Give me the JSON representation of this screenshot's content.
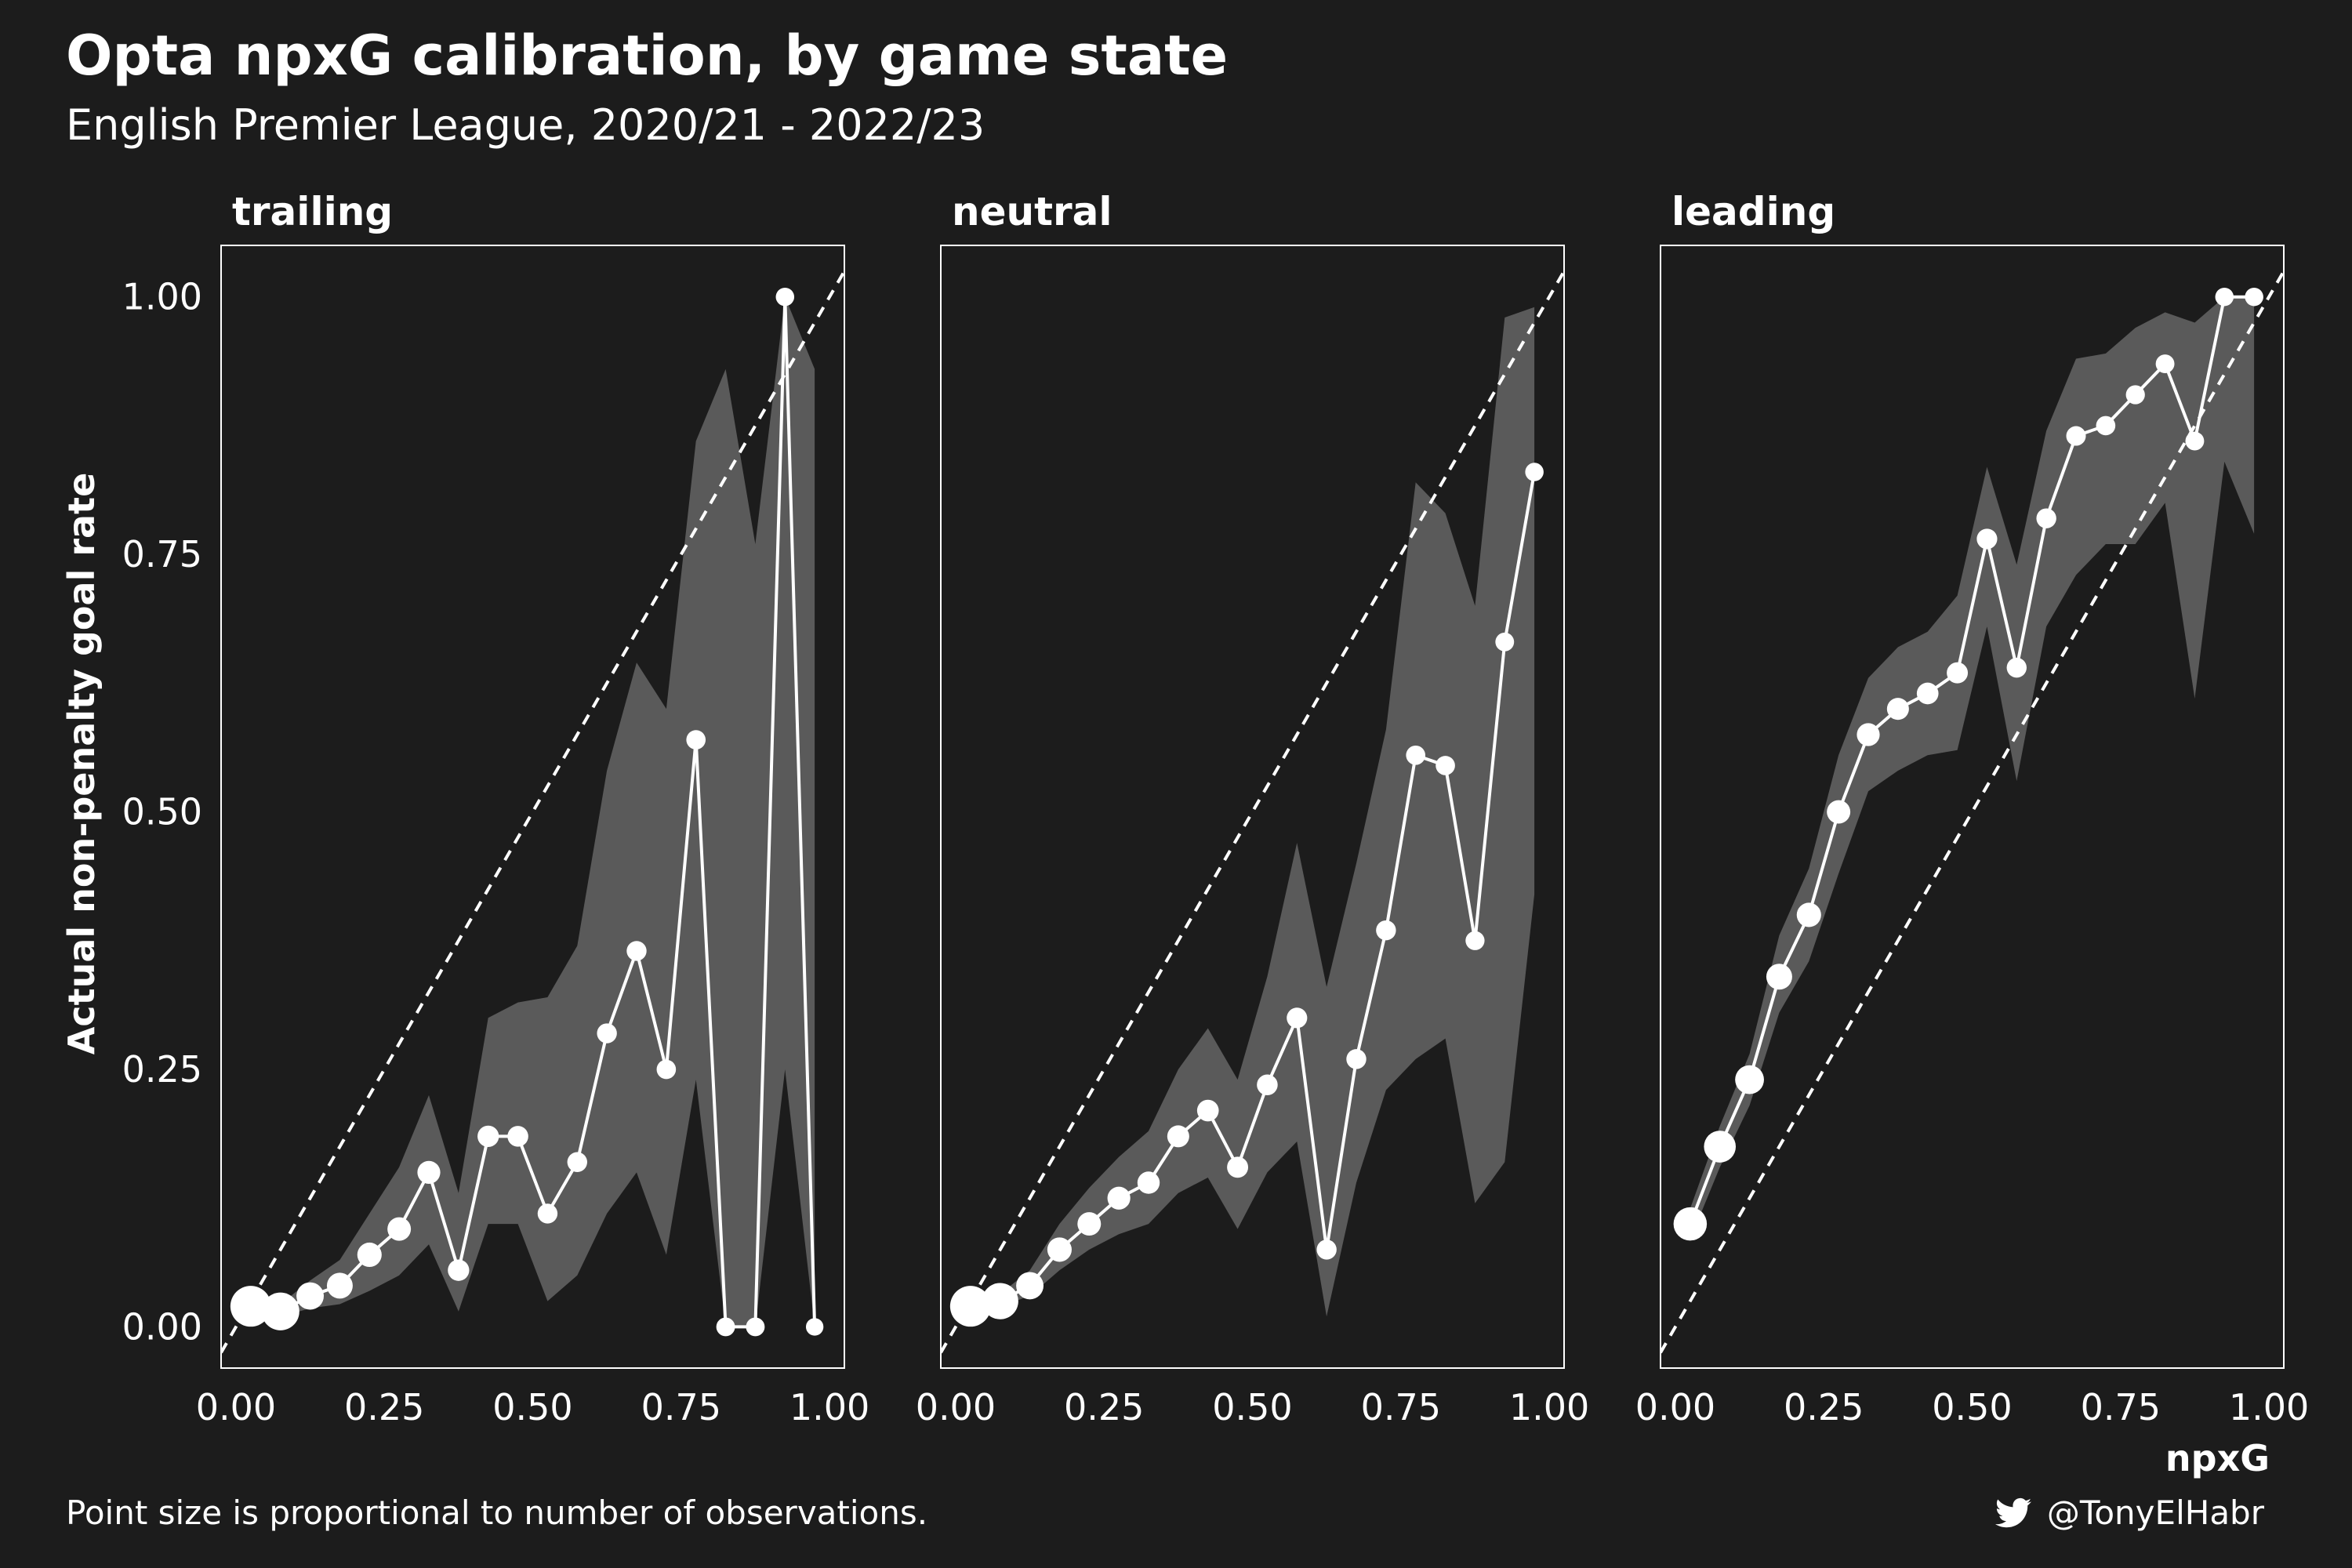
{
  "title": "Opta npxG calibration, by game state",
  "subtitle": "English Premier League, 2020/21 - 2022/23",
  "caption": "Point size is proportional to number of observations.",
  "credit": "@TonyElHabr",
  "icons": {
    "credit": "twitter-bird-icon"
  },
  "colors": {
    "background": "#1c1c1c",
    "band": "#5a5a5a",
    "line": "#ffffff"
  },
  "chart_data": {
    "type": "line",
    "xlabel": "npxG",
    "ylabel": "Actual non-penalty goal rate",
    "xlim": [
      0,
      1
    ],
    "ylim": [
      -0.04,
      1.05
    ],
    "xticks": [
      "0.00",
      "0.25",
      "0.50",
      "0.75",
      "1.00"
    ],
    "yticks": [
      "0.00",
      "0.25",
      "0.50",
      "0.75",
      "1.00"
    ],
    "reference_line": "y = x (dashed)",
    "grid": false,
    "panels": [
      {
        "name": "trailing",
        "x": [
          0.025,
          0.075,
          0.125,
          0.175,
          0.225,
          0.275,
          0.325,
          0.375,
          0.425,
          0.475,
          0.525,
          0.575,
          0.625,
          0.675,
          0.725,
          0.775,
          0.825,
          0.875,
          0.925,
          0.975
        ],
        "y": [
          0.02,
          0.015,
          0.03,
          0.04,
          0.07,
          0.095,
          0.15,
          0.055,
          0.185,
          0.185,
          0.11,
          0.16,
          0.285,
          0.365,
          0.25,
          0.57,
          0.0,
          0.0,
          1.0,
          0.0
        ],
        "lower": [
          0.01,
          0.01,
          0.018,
          0.022,
          0.035,
          0.05,
          0.08,
          0.015,
          0.1,
          0.1,
          0.025,
          0.05,
          0.11,
          0.15,
          0.07,
          0.24,
          0.0,
          0.0,
          0.25,
          0.0
        ],
        "upper": [
          0.03,
          0.022,
          0.045,
          0.065,
          0.11,
          0.155,
          0.225,
          0.13,
          0.3,
          0.315,
          0.32,
          0.37,
          0.54,
          0.645,
          0.6,
          0.86,
          0.93,
          0.76,
          1.0,
          0.93
        ],
        "size": [
          1.0,
          0.9,
          0.55,
          0.5,
          0.45,
          0.42,
          0.4,
          0.35,
          0.35,
          0.33,
          0.3,
          0.3,
          0.3,
          0.3,
          0.28,
          0.28,
          0.26,
          0.26,
          0.25,
          0.22
        ]
      },
      {
        "name": "neutral",
        "x": [
          0.025,
          0.075,
          0.125,
          0.175,
          0.225,
          0.275,
          0.325,
          0.375,
          0.425,
          0.475,
          0.525,
          0.575,
          0.625,
          0.675,
          0.725,
          0.775,
          0.825,
          0.875,
          0.925,
          0.975
        ],
        "y": [
          0.02,
          0.025,
          0.04,
          0.075,
          0.1,
          0.125,
          0.14,
          0.185,
          0.21,
          0.155,
          0.235,
          0.3,
          0.075,
          0.26,
          0.385,
          0.555,
          0.545,
          0.375,
          0.665,
          0.83
        ],
        "lower": [
          0.015,
          0.02,
          0.03,
          0.055,
          0.075,
          0.09,
          0.1,
          0.13,
          0.145,
          0.095,
          0.15,
          0.18,
          0.01,
          0.14,
          0.23,
          0.26,
          0.28,
          0.12,
          0.16,
          0.42
        ],
        "upper": [
          0.025,
          0.032,
          0.055,
          0.1,
          0.135,
          0.165,
          0.19,
          0.25,
          0.29,
          0.24,
          0.34,
          0.47,
          0.33,
          0.45,
          0.58,
          0.82,
          0.79,
          0.7,
          0.98,
          0.99
        ],
        "size": [
          1.0,
          0.85,
          0.55,
          0.45,
          0.42,
          0.4,
          0.38,
          0.37,
          0.36,
          0.34,
          0.33,
          0.32,
          0.3,
          0.3,
          0.3,
          0.28,
          0.28,
          0.27,
          0.26,
          0.25
        ]
      },
      {
        "name": "leading",
        "x": [
          0.025,
          0.075,
          0.125,
          0.175,
          0.225,
          0.275,
          0.325,
          0.375,
          0.425,
          0.475,
          0.525,
          0.575,
          0.625,
          0.675,
          0.725,
          0.775,
          0.825,
          0.875,
          0.925,
          0.975
        ],
        "y": [
          0.1,
          0.175,
          0.24,
          0.34,
          0.4,
          0.5,
          0.575,
          0.6,
          0.615,
          0.635,
          0.765,
          0.64,
          0.785,
          0.865,
          0.875,
          0.905,
          0.935,
          0.86,
          1.0,
          1.0
        ],
        "lower": [
          0.085,
          0.155,
          0.215,
          0.305,
          0.355,
          0.44,
          0.52,
          0.54,
          0.555,
          0.56,
          0.68,
          0.53,
          0.68,
          0.73,
          0.76,
          0.76,
          0.8,
          0.61,
          0.84,
          0.77
        ],
        "upper": [
          0.115,
          0.195,
          0.265,
          0.38,
          0.445,
          0.555,
          0.63,
          0.66,
          0.675,
          0.71,
          0.835,
          0.74,
          0.87,
          0.94,
          0.945,
          0.97,
          0.985,
          0.975,
          1.0,
          1.0
        ],
        "size": [
          0.75,
          0.7,
          0.6,
          0.5,
          0.45,
          0.42,
          0.4,
          0.37,
          0.36,
          0.34,
          0.32,
          0.3,
          0.3,
          0.29,
          0.28,
          0.27,
          0.26,
          0.26,
          0.25,
          0.25
        ]
      }
    ]
  }
}
